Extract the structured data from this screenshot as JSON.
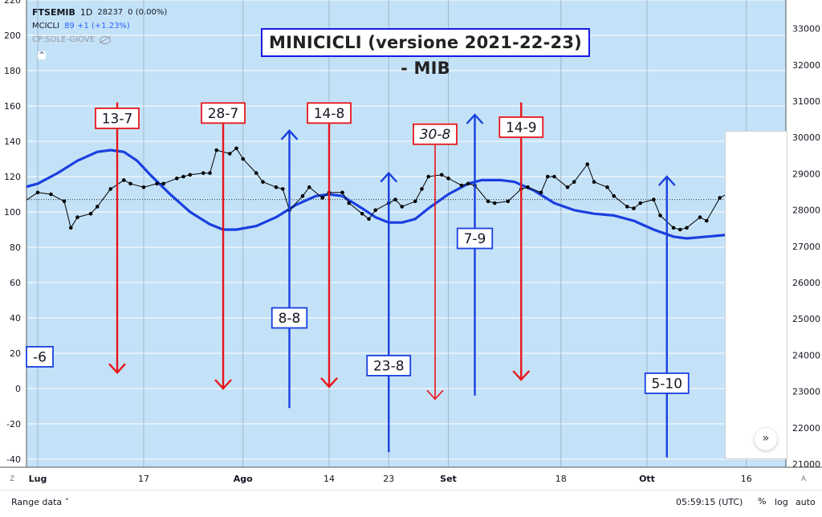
{
  "legend": {
    "symbol": "FTSEMIB",
    "interval": "1D",
    "last": "28237",
    "change": "0 (0.00%)",
    "indicator_name": "MCICLI",
    "indicator_value": "89 +1 (+1.23%)",
    "overlay_name": "CP:SOLE-GIOVE",
    "caret": "^"
  },
  "title": "MINICICLI (versione 2021-22-23) - MIB",
  "bottom_bar": {
    "range_label": "Range data ˅",
    "time": "05:59:15 (UTC)",
    "percent": "%",
    "log": "log",
    "auto": "auto",
    "corner_left": "Z",
    "corner_right": "A",
    "scroll_glyph": "»"
  },
  "colors": {
    "background": "#c4e2f7",
    "price_line": "#000000",
    "cycle_line": "#1a3fe0",
    "red_marker": "#e8161a",
    "blue_marker": "#1a3fe0"
  },
  "chart_data": {
    "type": "line",
    "x_tick_labels": [
      {
        "day": 0,
        "label": "Lug"
      },
      {
        "day": 16,
        "label": "17"
      },
      {
        "day": 31,
        "label": "Ago"
      },
      {
        "day": 44,
        "label": "14"
      },
      {
        "day": 53,
        "label": "23"
      },
      {
        "day": 62,
        "label": "Set"
      },
      {
        "day": 79,
        "label": "18"
      },
      {
        "day": 92,
        "label": "Ott"
      },
      {
        "day": 107,
        "label": "16"
      }
    ],
    "left_axis": {
      "ylim": [
        -45,
        225
      ],
      "ticks": [
        220,
        200,
        180,
        160,
        140,
        120,
        100,
        80,
        60,
        40,
        20,
        0,
        -20,
        -40
      ]
    },
    "right_axis": {
      "ylim": [
        20911,
        33789
      ],
      "ticks": [
        33000,
        32000,
        31000,
        30000,
        29000,
        28000,
        27000,
        26000,
        25000,
        24000,
        23000,
        22000,
        21000
      ]
    },
    "reference_level": 107,
    "series": [
      {
        "name": "FTSEMIB",
        "style": "line-with-dots",
        "points": [
          [
            -2,
            106
          ],
          [
            0,
            111
          ],
          [
            2,
            110
          ],
          [
            4,
            106
          ],
          [
            5,
            91
          ],
          [
            6,
            97
          ],
          [
            8,
            99
          ],
          [
            9,
            103
          ],
          [
            11,
            113
          ],
          [
            13,
            118
          ],
          [
            14,
            116
          ],
          [
            16,
            114
          ],
          [
            18,
            116
          ],
          [
            19,
            116
          ],
          [
            21,
            119
          ],
          [
            22,
            120
          ],
          [
            23,
            121
          ],
          [
            25,
            122
          ],
          [
            26,
            122
          ],
          [
            27,
            135
          ],
          [
            29,
            133
          ],
          [
            30,
            136
          ],
          [
            31,
            130
          ],
          [
            33,
            122
          ],
          [
            34,
            117
          ],
          [
            36,
            114
          ],
          [
            37,
            113
          ],
          [
            38,
            101
          ],
          [
            40,
            109
          ],
          [
            41,
            114
          ],
          [
            43,
            108
          ],
          [
            44,
            111
          ],
          [
            46,
            111
          ],
          [
            47,
            105
          ],
          [
            49,
            99
          ],
          [
            50,
            96
          ],
          [
            51,
            101
          ],
          [
            53,
            105
          ],
          [
            54,
            107
          ],
          [
            55,
            103
          ],
          [
            57,
            106
          ],
          [
            58,
            113
          ],
          [
            59,
            120
          ],
          [
            61,
            121
          ],
          [
            62,
            119
          ],
          [
            64,
            115
          ],
          [
            65,
            116
          ],
          [
            66,
            115
          ],
          [
            68,
            106
          ],
          [
            69,
            105
          ],
          [
            71,
            106
          ],
          [
            73,
            113
          ],
          [
            74,
            114
          ],
          [
            76,
            111
          ],
          [
            77,
            120
          ],
          [
            78,
            120
          ],
          [
            80,
            114
          ],
          [
            81,
            117
          ],
          [
            83,
            127
          ],
          [
            84,
            117
          ],
          [
            86,
            114
          ],
          [
            87,
            109
          ],
          [
            89,
            103
          ],
          [
            90,
            102
          ],
          [
            91,
            105
          ],
          [
            93,
            107
          ],
          [
            94,
            98
          ],
          [
            96,
            91
          ],
          [
            97,
            90
          ],
          [
            98,
            91
          ],
          [
            100,
            97
          ],
          [
            101,
            95
          ],
          [
            103,
            108
          ],
          [
            104,
            110
          ],
          [
            105,
            112
          ]
        ]
      },
      {
        "name": "MCICLI",
        "style": "thick-line",
        "points": [
          [
            -2,
            114
          ],
          [
            0,
            116
          ],
          [
            3,
            122
          ],
          [
            6,
            129
          ],
          [
            9,
            134
          ],
          [
            11,
            135
          ],
          [
            13,
            134
          ],
          [
            15,
            129
          ],
          [
            17,
            121
          ],
          [
            20,
            110
          ],
          [
            23,
            100
          ],
          [
            26,
            93
          ],
          [
            28,
            90
          ],
          [
            30,
            90
          ],
          [
            33,
            92
          ],
          [
            36,
            97
          ],
          [
            39,
            104
          ],
          [
            42,
            109
          ],
          [
            44,
            110
          ],
          [
            46,
            109
          ],
          [
            49,
            102
          ],
          [
            51,
            97
          ],
          [
            53,
            94
          ],
          [
            55,
            94
          ],
          [
            57,
            96
          ],
          [
            59,
            102
          ],
          [
            62,
            110
          ],
          [
            65,
            116
          ],
          [
            67,
            118
          ],
          [
            70,
            118
          ],
          [
            72,
            117
          ],
          [
            75,
            112
          ],
          [
            78,
            105
          ],
          [
            81,
            101
          ],
          [
            84,
            99
          ],
          [
            87,
            98
          ],
          [
            90,
            95
          ],
          [
            93,
            90
          ],
          [
            96,
            86
          ],
          [
            98,
            85
          ],
          [
            101,
            86
          ],
          [
            104,
            87
          ]
        ]
      }
    ],
    "markers": [
      {
        "label": "-6",
        "day": -2,
        "direction": "none",
        "color": "blue",
        "y_top": 20,
        "y_bottom": 20,
        "label_y": 18,
        "italic": false
      },
      {
        "label": "13-7",
        "day": 12,
        "direction": "down",
        "color": "red",
        "y_top": 162,
        "y_bottom": 9,
        "label_y": 153,
        "italic": false
      },
      {
        "label": "28-7",
        "day": 28,
        "direction": "down",
        "color": "red",
        "y_top": 162,
        "y_bottom": 0,
        "label_y": 156,
        "italic": false
      },
      {
        "label": "8-8",
        "day": 38,
        "direction": "up",
        "color": "blue",
        "y_top": 146,
        "y_bottom": -11,
        "label_y": 40,
        "italic": false
      },
      {
        "label": "14-8",
        "day": 44,
        "direction": "down",
        "color": "red",
        "y_top": 162,
        "y_bottom": 1,
        "label_y": 156,
        "italic": false
      },
      {
        "label": "23-8",
        "day": 53,
        "direction": "up",
        "color": "blue",
        "y_top": 122,
        "y_bottom": -36,
        "label_y": 13,
        "italic": false
      },
      {
        "label": "30-8",
        "day": 60,
        "direction": "down",
        "color": "red",
        "y_top": 147,
        "y_bottom": -6,
        "label_y": 144,
        "italic": true
      },
      {
        "label": "7-9",
        "day": 66,
        "direction": "up",
        "color": "blue",
        "y_top": 155,
        "y_bottom": -4,
        "label_y": 85,
        "italic": false
      },
      {
        "label": "14-9",
        "day": 73,
        "direction": "down",
        "color": "red",
        "y_top": 162,
        "y_bottom": 5,
        "label_y": 148,
        "italic": false
      },
      {
        "label": "5-10",
        "day": 95,
        "direction": "up",
        "color": "blue",
        "y_top": 120,
        "y_bottom": -39,
        "label_y": 3,
        "italic": false
      }
    ]
  }
}
